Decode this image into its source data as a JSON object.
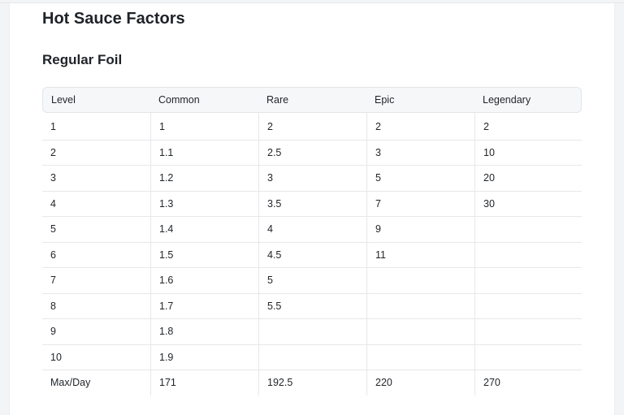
{
  "page": {
    "title": "Hot Sauce Factors",
    "section_title": "Regular Foil"
  },
  "table": {
    "headers": [
      "Level",
      "Common",
      "Rare",
      "Epic",
      "Legendary"
    ],
    "rows": [
      [
        "1",
        "1",
        "2",
        "2",
        "2"
      ],
      [
        "2",
        "1.1",
        "2.5",
        "3",
        "10"
      ],
      [
        "3",
        "1.2",
        "3",
        "5",
        "20"
      ],
      [
        "4",
        "1.3",
        "3.5",
        "7",
        "30"
      ],
      [
        "5",
        "1.4",
        "4",
        "9",
        ""
      ],
      [
        "6",
        "1.5",
        "4.5",
        "11",
        ""
      ],
      [
        "7",
        "1.6",
        "5",
        "",
        ""
      ],
      [
        "8",
        "1.7",
        "5.5",
        "",
        ""
      ],
      [
        "9",
        "1.8",
        "",
        "",
        ""
      ],
      [
        "10",
        "1.9",
        "",
        "",
        ""
      ],
      [
        "Max/Day",
        "171",
        "192.5",
        "220",
        "270"
      ]
    ]
  }
}
